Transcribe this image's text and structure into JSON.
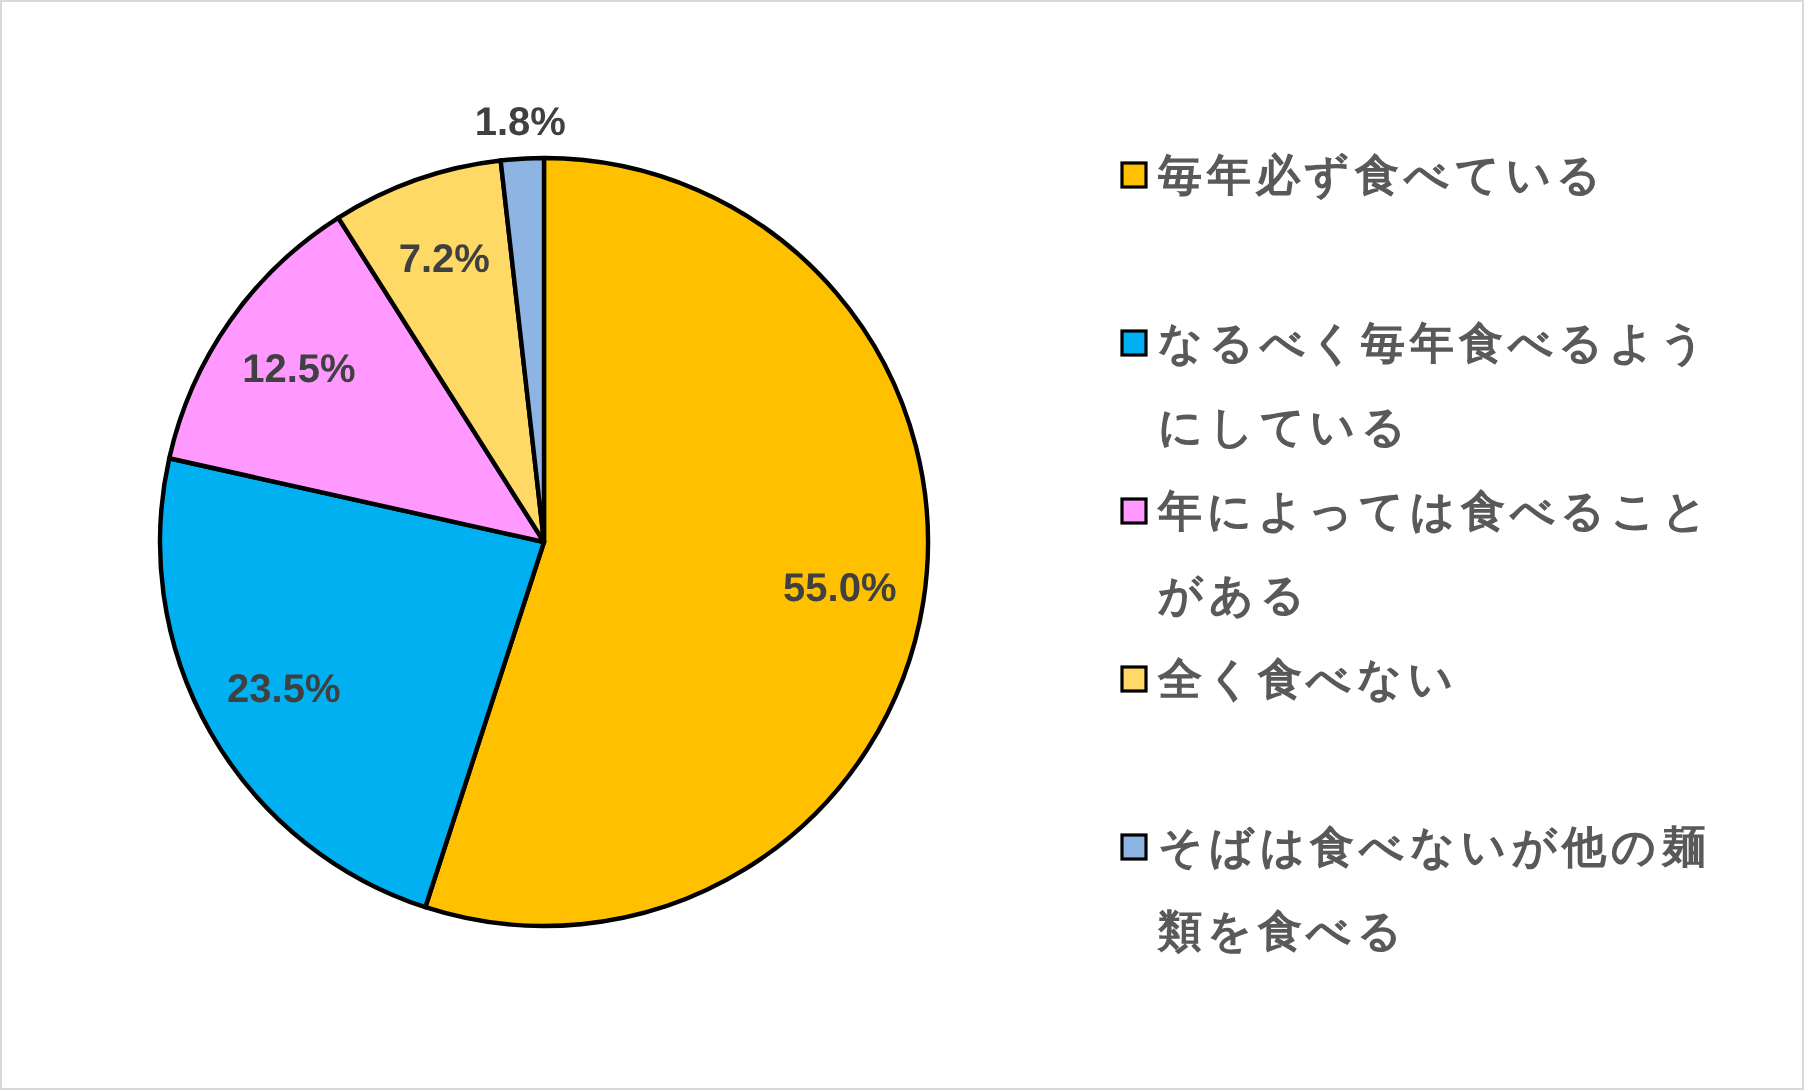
{
  "chart_data": {
    "type": "pie",
    "categories": [
      "毎年必ず食べている",
      "なるべく毎年食べるようにしている",
      "年によっては食べることがある",
      "全く食べない",
      "そばは食べないが他の麺類を食べる"
    ],
    "values": [
      55.0,
      23.5,
      12.5,
      7.2,
      1.8
    ],
    "colors": [
      "#ffc000",
      "#00b0f0",
      "#ff99ff",
      "#ffd966",
      "#8db4e2"
    ],
    "value_labels": [
      "55.0%",
      "23.5%",
      "12.5%",
      "7.2%",
      "1.8%"
    ],
    "legend": "right"
  }
}
